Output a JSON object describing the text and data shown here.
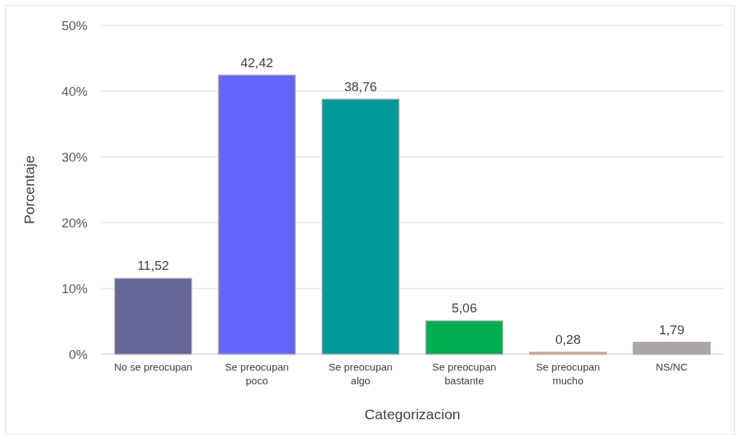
{
  "chart_data": {
    "type": "bar",
    "xlabel": "Categorizacion",
    "ylabel": "Porcentaje",
    "categories": [
      "No se preocupan",
      "Se preocupan poco",
      "Se preocupan algo",
      "Se preocupan bastante",
      "Se preocupan mucho",
      "NS/NC"
    ],
    "values": [
      11.52,
      42.42,
      38.76,
      5.06,
      0.28,
      1.79
    ],
    "colors": [
      "#666699",
      "#6666ff",
      "#009999",
      "#00b050",
      "#f4b183",
      "#aaa6a6"
    ],
    "value_labels": [
      "11,52",
      "42,42",
      "38,76",
      "5,06",
      "0,28",
      "1,79"
    ],
    "ylim": [
      0,
      50
    ],
    "yticks": [
      {
        "value": 0,
        "label": "0%"
      },
      {
        "value": 10,
        "label": "10%"
      },
      {
        "value": 20,
        "label": "20%"
      },
      {
        "value": 30,
        "label": "30%"
      },
      {
        "value": 40,
        "label": "40%"
      },
      {
        "value": 50,
        "label": "50%"
      }
    ],
    "grid": "y"
  }
}
